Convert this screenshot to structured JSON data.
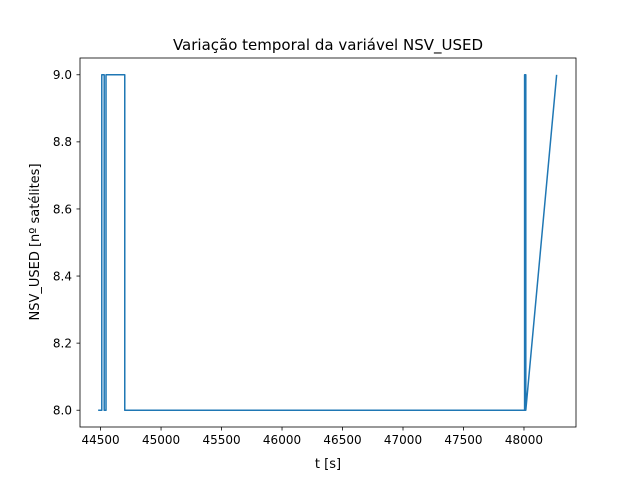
{
  "chart_data": {
    "type": "line",
    "title": "Variação temporal da variável NSV_USED",
    "xlabel": "t [s]",
    "ylabel": "NSV_USED [nº satélites]",
    "xlim": [
      44330,
      48430
    ],
    "ylim": [
      7.95,
      9.05
    ],
    "xticks": [
      44500,
      45000,
      45500,
      46000,
      46500,
      47000,
      47500,
      48000
    ],
    "yticks": [
      8.0,
      8.2,
      8.4,
      8.6,
      8.8,
      9.0
    ],
    "ytick_labels": [
      "8.0",
      "8.2",
      "8.4",
      "8.6",
      "8.8",
      "9.0"
    ],
    "grid": false,
    "line_color": "#1f77b4",
    "series": [
      {
        "x": [
          44480,
          44510,
          44510,
          44530,
          44530,
          44545,
          44545,
          44700,
          44700,
          48005,
          48005,
          48009,
          48009,
          48012,
          48012,
          48015,
          48015,
          48270
        ],
        "y": [
          8,
          8,
          9,
          9,
          8,
          8,
          9,
          9,
          8,
          8,
          9,
          9,
          8,
          8,
          9,
          9,
          8,
          9
        ]
      }
    ]
  }
}
